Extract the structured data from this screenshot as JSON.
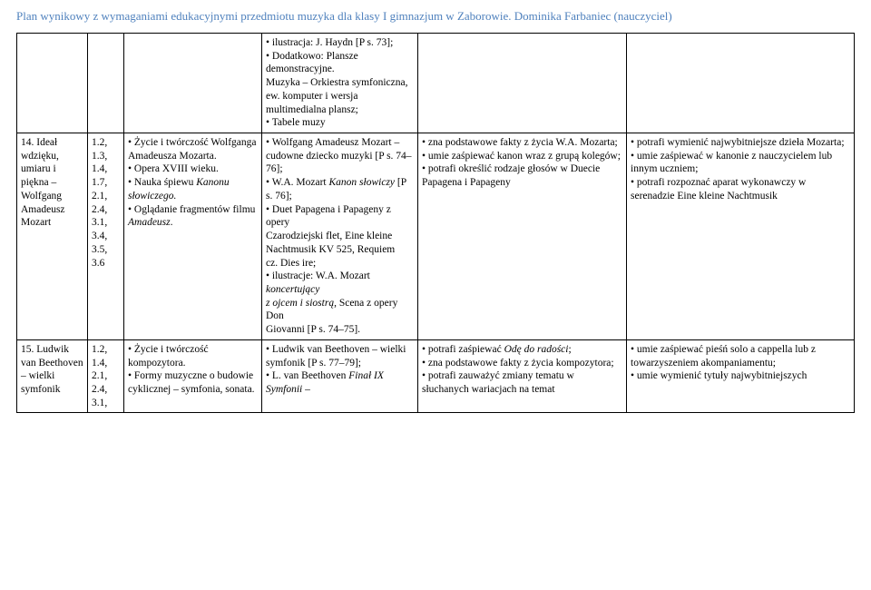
{
  "header": {
    "text": "Plan wynikowy z wymaganiami edukacyjnymi przedmiotu muzyka dla klasy I gimnazjum w Zaborowie. Dominika Farbaniec (nauczyciel)"
  },
  "table": {
    "rows": [
      {
        "c1": "",
        "c2": "",
        "c3": "",
        "c4_html": "• ilustracja: J. Haydn [P s. 73];<br>• Dodatkowo: Plansze demonstracyjne.<br>Muzyka – Orkiestra symfoniczna, ew. komputer i wersja multimedialna plansz;<br>• Tabele muzy",
        "c5": "",
        "c6": ""
      },
      {
        "c1": "14. Ideał wdzięku, umiaru i piękna – Wolfgang Amadeusz Mozart",
        "c2": "1.2,\n1.3,\n1.4,\n1.7,\n2.1,\n2.4,\n3.1,\n3.4,\n3.5,\n3.6",
        "c3_html": "• Życie i twórczość Wolfganga<br>Amadeusza Mozarta.<br>• Opera XVIII wieku.<br>• Nauka śpiewu <span class=\"it\">Kanonu słowiczego.</span><br>• Oglądanie fragmentów filmu <span class=\"it\">Amadeusz</span>.",
        "c4_html": "• Wolfgang Amadeusz Mozart –<br>cudowne dziecko muzyki [P s. 74–76];<br>• W.A. Mozart <span class=\"it\">Kanon słowiczy</span> [P s. 76];<br>• Duet Papagena i Papageny z opery<br>Czarodziejski flet, Eine kleine<br>Nachtmusik KV 525, Requiem<br>cz. Dies ire;<br>• ilustracje: W.A. Mozart <span class=\"it\">koncertujący<br>z ojcem i siostrą</span>, Scena z opery Don<br>Giovanni [P s. 74–75].",
        "c5_html": "• zna podstawowe fakty z życia W.A. Mozarta;<br>• umie zaśpiewać kanon wraz z grupą kolegów;<br>• potrafi określić rodzaje głosów w Duecie Papagena i Papageny",
        "c6_html": "• potrafi wymienić najwybitniejsze dzieła Mozarta;<br>• umie zaśpiewać w kanonie z nauczycielem lub innym uczniem;<br>• potrafi rozpoznać aparat wykonawczy w serenadzie Eine kleine Nachtmusik"
      },
      {
        "c1": "15. Ludwik van Beethoven – wielki symfonik",
        "c2": "1.2,\n1.4,\n2.1,\n2.4,\n3.1,",
        "c3_html": "• Życie i twórczość kompozytora.<br>• Formy muzyczne o budowie cyklicznej – symfonia, sonata.",
        "c4_html": "• Ludwik van Beethoven – wielki<br>symfonik [P s. 77–79];<br>• L. van Beethoven <span class=\"it\">Finał IX Symfonii</span> –",
        "c5_html": "• potrafi zaśpiewać <span class=\"it\">Odę do radości</span>;<br>• zna podstawowe fakty z życia kompozytora;<br>• potrafi zauważyć zmiany tematu w słuchanych wariacjach na temat",
        "c6_html": "• umie zaśpiewać pieśń solo a cappella lub z towarzyszeniem akompaniamentu;<br>• umie wymienić tytuły najwybitniejszych"
      }
    ]
  }
}
